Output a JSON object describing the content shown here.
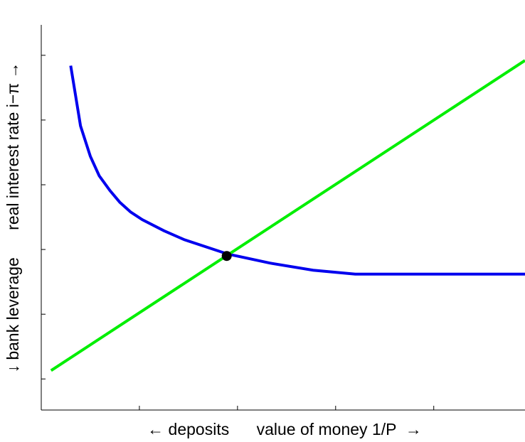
{
  "chart_data": {
    "type": "line",
    "xlabel": "← deposits      value of money 1/P  →",
    "ylabel": "↓ bank leverage      real interest rate i−π →",
    "xlim": [
      0,
      4.93
    ],
    "xticks": [
      1,
      2,
      3,
      4
    ],
    "ylim": [
      0.52,
      6.47
    ],
    "yticks": [
      1,
      2,
      3,
      4,
      5,
      6
    ],
    "grid": false,
    "series": [
      {
        "color": "#0000ee",
        "x": [
          0.3,
          0.4,
          0.5,
          0.59,
          0.7,
          0.8,
          0.91,
          1.03,
          1.25,
          1.46,
          1.9,
          2.33,
          2.77,
          3.2,
          4.93
        ],
        "values": [
          5.84,
          4.91,
          4.44,
          4.14,
          3.91,
          3.73,
          3.58,
          3.46,
          3.29,
          3.15,
          2.93,
          2.79,
          2.68,
          2.62,
          2.62
        ]
      },
      {
        "color": "#00ee00",
        "x": [
          0.1,
          4.93
        ],
        "values": [
          1.13,
          5.92
        ]
      }
    ],
    "points": [
      {
        "x": 1.89,
        "y": 2.9,
        "color": "#000000"
      }
    ]
  }
}
